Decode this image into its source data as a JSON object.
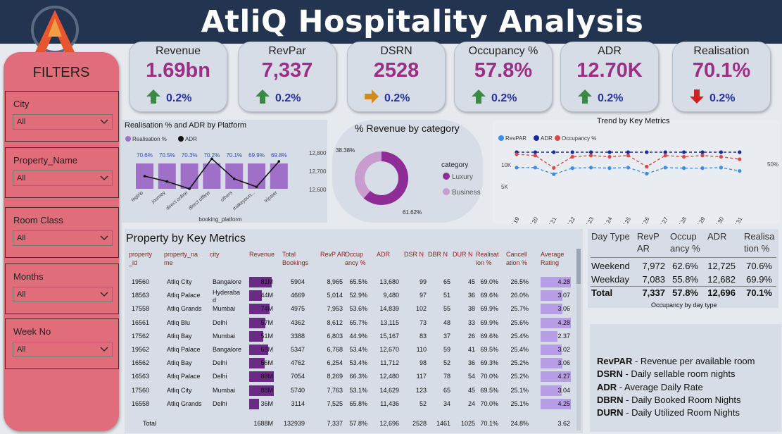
{
  "header": {
    "title": "AtliQ Hospitality Analysis"
  },
  "filters": {
    "title": "FILTERS",
    "items": [
      {
        "label": "City",
        "value": "All"
      },
      {
        "label": "Property_Name",
        "value": "All"
      },
      {
        "label": "Room Class",
        "value": "All"
      },
      {
        "label": "Months",
        "value": "All"
      },
      {
        "label": "Week No",
        "value": "All"
      }
    ]
  },
  "kpis": [
    {
      "label": "Revenue",
      "value": "1.69bn",
      "change": "0.2%",
      "trend": "up"
    },
    {
      "label": "RevPar",
      "value": "7,337",
      "change": "0.2%",
      "trend": "up"
    },
    {
      "label": "DSRN",
      "value": "2528",
      "change": "0.2%",
      "trend": "flat"
    },
    {
      "label": "Occupancy %",
      "value": "57.8%",
      "change": "0.2%",
      "trend": "up"
    },
    {
      "label": "ADR",
      "value": "12.70K",
      "change": "0.2%",
      "trend": "up"
    },
    {
      "label": "Realisation",
      "value": "70.1%",
      "change": "0.2%",
      "trend": "down"
    }
  ],
  "colors": {
    "kpi_value": "#9b2f86",
    "up": "#3a8a45",
    "down": "#d02020",
    "flat": "#d08a20",
    "luxury": "#8e2d96",
    "business": "#c89ccf"
  },
  "platform_chart": {
    "title": "Realisation % and ADR by Platform",
    "legend": [
      "Realisation %",
      "ADR"
    ],
    "xlabel": "booking_platform",
    "yticks": [
      "12,800",
      "12,700",
      "12,600"
    ]
  },
  "category_chart": {
    "title": "% Revenue by category",
    "legend_title": "category",
    "legend": [
      "Luxury",
      "Business"
    ]
  },
  "trend_chart": {
    "title": "Trend by Key Metrics",
    "legend": [
      "RevPAR",
      "ADR",
      "Occupancy %"
    ],
    "yticks_left": [
      "10K",
      "5K"
    ],
    "yticks_right": [
      "50%"
    ]
  },
  "chart_data": [
    {
      "type": "bar",
      "title": "Realisation % and ADR by Platform",
      "xlabel": "booking_platform",
      "categories": [
        "logtrip",
        "journey",
        "direct online",
        "direct offline",
        "others",
        "makeyourt...",
        "tripster"
      ],
      "series": [
        {
          "name": "Realisation %",
          "values": [
            70.6,
            70.5,
            70.3,
            70.2,
            70.1,
            69.9,
            69.8
          ],
          "labels": [
            "70.6%",
            "70.5%",
            "70.3%",
            "70.2%",
            "70.1%",
            "69.9%",
            "69.8%"
          ]
        },
        {
          "name": "ADR",
          "values": [
            12700,
            12680,
            12650,
            12765,
            12690,
            12660,
            12755
          ]
        }
      ],
      "ylim_right": [
        12600,
        12800
      ]
    },
    {
      "type": "pie",
      "title": "% Revenue by category",
      "categories": [
        "Luxury",
        "Business"
      ],
      "values": [
        61.62,
        38.38
      ],
      "labels": [
        "61.62%",
        "38.38%"
      ]
    },
    {
      "type": "line",
      "title": "Trend by Key Metrics",
      "x": [
        "W 19",
        "W 20",
        "W 21",
        "W 22",
        "W 23",
        "W 24",
        "W 25",
        "W 26",
        "W 27",
        "W 28",
        "W 29",
        "W 30",
        "W 31"
      ],
      "series": [
        {
          "name": "RevPAR",
          "values": [
            7400,
            7400,
            6200,
            7300,
            7400,
            7300,
            7400,
            6300,
            7400,
            7300,
            7300,
            7400,
            6800
          ]
        },
        {
          "name": "ADR",
          "values": [
            12700,
            12700,
            12700,
            12700,
            12700,
            12700,
            12700,
            12700,
            12700,
            12700,
            12700,
            12700,
            12700
          ]
        },
        {
          "name": "Occupancy %",
          "values": [
            58.5,
            58,
            53,
            57.5,
            58,
            57.5,
            58,
            53.5,
            58,
            57.5,
            58,
            57.5,
            56.5
          ]
        }
      ],
      "ylim": [
        0,
        14000
      ]
    }
  ],
  "property_table": {
    "title": "Property by Key Metrics",
    "columns": [
      "property _id",
      "property_na me",
      "city",
      "Revenue",
      "Total Bookings",
      "RevP AR",
      "Occup ancy %",
      "ADR",
      "DSR N",
      "DBR N",
      "DUR N",
      "Realisat ion %",
      "Cancell ation %",
      "Average Rating"
    ],
    "rows": [
      [
        "19560",
        "Atliq City",
        "Bangalore",
        "81M",
        "5904",
        "8,965",
        "65.5%",
        "13,680",
        "99",
        "65",
        "45",
        "69.0%",
        "26.5%",
        "4.28"
      ],
      [
        "18563",
        "Atliq Palace",
        "Hyderaba d",
        "44M",
        "4669",
        "5,014",
        "52.9%",
        "9,480",
        "97",
        "51",
        "36",
        "69.6%",
        "26.0%",
        "3.07"
      ],
      [
        "17558",
        "Atliq Grands",
        "Mumbai",
        "74M",
        "4975",
        "7,953",
        "53.6%",
        "14,839",
        "102",
        "55",
        "38",
        "69.9%",
        "25.7%",
        "3.06"
      ],
      [
        "16561",
        "Atliq Blu",
        "Delhi",
        "57M",
        "4362",
        "8,612",
        "65.7%",
        "13,115",
        "73",
        "48",
        "33",
        "69.9%",
        "25.6%",
        "4.28"
      ],
      [
        "17562",
        "Atliq Bay",
        "Mumbai",
        "51M",
        "3388",
        "6,803",
        "44.9%",
        "15,167",
        "83",
        "37",
        "26",
        "69.6%",
        "25.4%",
        "2.37"
      ],
      [
        "19562",
        "Atliq Palace",
        "Bangalore",
        "68M",
        "5347",
        "6,768",
        "53.4%",
        "12,670",
        "110",
        "59",
        "41",
        "69.5%",
        "25.4%",
        "3.02"
      ],
      [
        "16562",
        "Atliq Bay",
        "Delhi",
        "56M",
        "4762",
        "6,254",
        "53.4%",
        "11,712",
        "98",
        "52",
        "36",
        "69.3%",
        "25.2%",
        "3.06"
      ],
      [
        "16563",
        "Atliq Palace",
        "Delhi",
        "88M",
        "7054",
        "8,269",
        "66.3%",
        "12,480",
        "117",
        "78",
        "54",
        "70.0%",
        "25.2%",
        "4.27"
      ],
      [
        "17560",
        "Atliq City",
        "Mumbai",
        "88M",
        "5740",
        "7,763",
        "53.1%",
        "14,629",
        "123",
        "65",
        "45",
        "69.5%",
        "25.1%",
        "3.04"
      ],
      [
        "16558",
        "Atliq Grands",
        "Delhi",
        "36M",
        "3114",
        "7,525",
        "65.8%",
        "11,436",
        "52",
        "34",
        "24",
        "70.0%",
        "25.1%",
        "4.25"
      ]
    ],
    "revenue_values": [
      81,
      44,
      74,
      57,
      51,
      68,
      56,
      88,
      88,
      36
    ],
    "rating_values": [
      4.28,
      3.07,
      3.06,
      4.28,
      2.37,
      3.02,
      3.06,
      4.27,
      3.04,
      4.25
    ],
    "total": [
      "Total",
      "",
      "",
      "1688M",
      "132939",
      "7,337",
      "57.8%",
      "12,696",
      "2528",
      "1461",
      "1025",
      "70.1%",
      "24.8%",
      "3.62"
    ]
  },
  "daytype_table": {
    "columns": [
      "Day Type",
      "RevP AR",
      "Occup ancy %",
      "ADR",
      "Realisa tion %"
    ],
    "rows": [
      [
        "Weekend",
        "7,972",
        "62.6%",
        "12,725",
        "70.6%"
      ],
      [
        "Weekday",
        "7,083",
        "55.8%",
        "12,682",
        "69.9%"
      ]
    ],
    "total": [
      "Total",
      "7,337",
      "57.8%",
      "12,696",
      "70.1%"
    ],
    "caption": "Occupancy by day type"
  },
  "glossary": [
    {
      "term": "RevPAR",
      "desc": " - Revenue per available room"
    },
    {
      "term": "DSRN",
      "desc": " - Daily sellable room nights"
    },
    {
      "term": "ADR",
      "desc": " - Average Daily Rate"
    },
    {
      "term": "DBRN",
      "desc": " - Daily Booked Room Nights"
    },
    {
      "term": "DURN",
      "desc": " - Daily Utilized Room Nights"
    }
  ]
}
